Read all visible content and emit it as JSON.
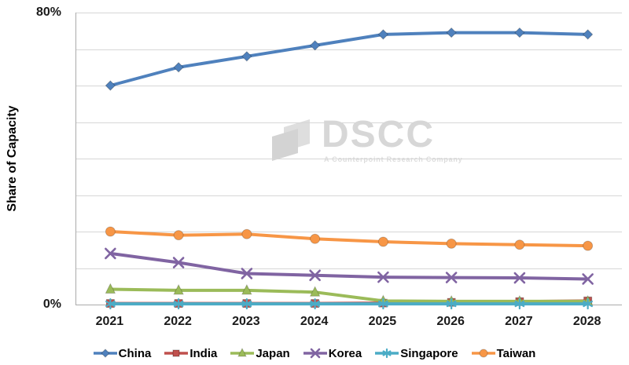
{
  "axis": {
    "y_title": "Share of Capacity",
    "y_max_label": "80%",
    "y_min_label": "0%",
    "grid_step": 10,
    "grid_color": "#d6d6d6",
    "axis_color": "#ababab"
  },
  "watermark": {
    "title": "DSCC",
    "tagline": "A Counterpoint Research Company"
  },
  "chart_data": {
    "type": "line",
    "title": "",
    "xlabel": "",
    "ylabel": "Share of Capacity",
    "ylim": [
      0,
      80
    ],
    "grid": true,
    "legend_position": "bottom",
    "categories": [
      "2021",
      "2022",
      "2023",
      "2024",
      "2025",
      "2026",
      "2027",
      "2028"
    ],
    "series": [
      {
        "name": "China",
        "marker": "diamond",
        "color": "#4F81BD",
        "values": [
          60,
          65,
          68,
          71,
          74,
          74.5,
          74.5,
          74
        ]
      },
      {
        "name": "India",
        "marker": "square",
        "color": "#C0504D",
        "values": [
          0.3,
          0.3,
          0.3,
          0.3,
          0.4,
          0.6,
          0.8,
          1.0
        ]
      },
      {
        "name": "Japan",
        "marker": "triangle",
        "color": "#9BBB59",
        "values": [
          4.2,
          3.9,
          3.9,
          3.4,
          1.0,
          0.9,
          0.9,
          0.9
        ]
      },
      {
        "name": "Korea",
        "marker": "x",
        "color": "#8064A2",
        "values": [
          14,
          11.5,
          8.5,
          8,
          7.5,
          7.4,
          7.3,
          7
        ]
      },
      {
        "name": "Singapore",
        "marker": "asterisk",
        "color": "#4BACC6",
        "values": [
          0.2,
          0.2,
          0.2,
          0.2,
          0.2,
          0.2,
          0.2,
          0.2
        ]
      },
      {
        "name": "Taiwan",
        "marker": "circle",
        "color": "#F79646",
        "values": [
          20,
          19,
          19.3,
          18,
          17.2,
          16.7,
          16.4,
          16.1
        ]
      }
    ]
  }
}
